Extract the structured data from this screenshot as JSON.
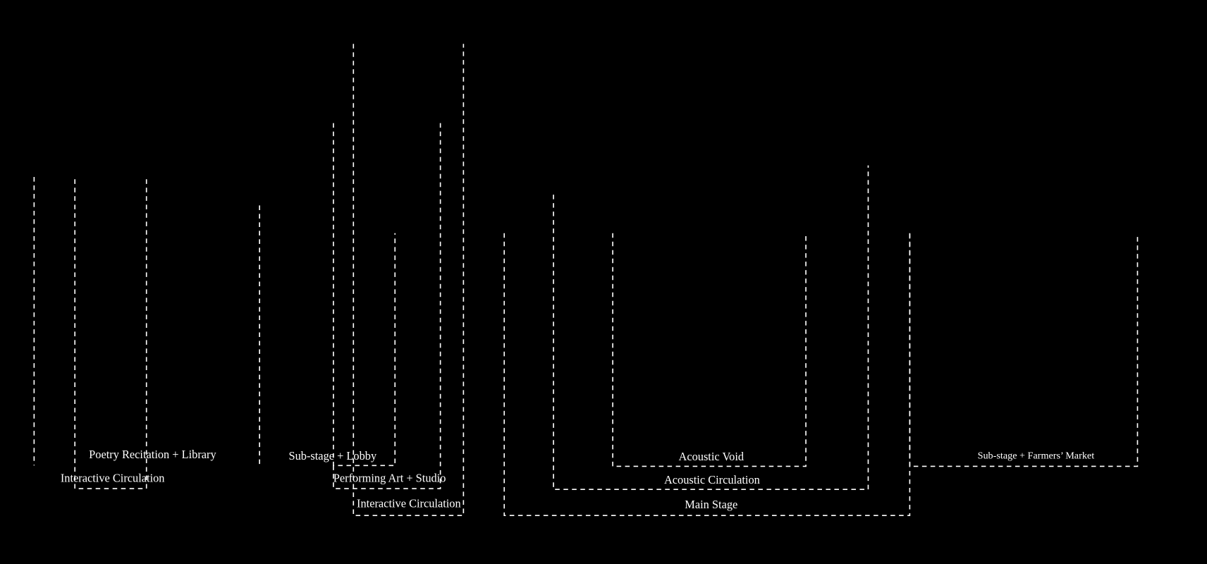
{
  "labels": {
    "poetry": "Poetry Recitation  + Library",
    "interactive_left": "Interactive Circulation",
    "substage_lobby": "Sub-stage +  Lobby",
    "performing": "Performing Art  + Studio",
    "interactive_center": "Interactive Circulation",
    "acoustic_void": "Acoustic Void",
    "acoustic_circulation": "Acoustic Circulation",
    "main_stage": "Main Stage",
    "farmers": "Sub-stage + Farmers’ Market"
  }
}
